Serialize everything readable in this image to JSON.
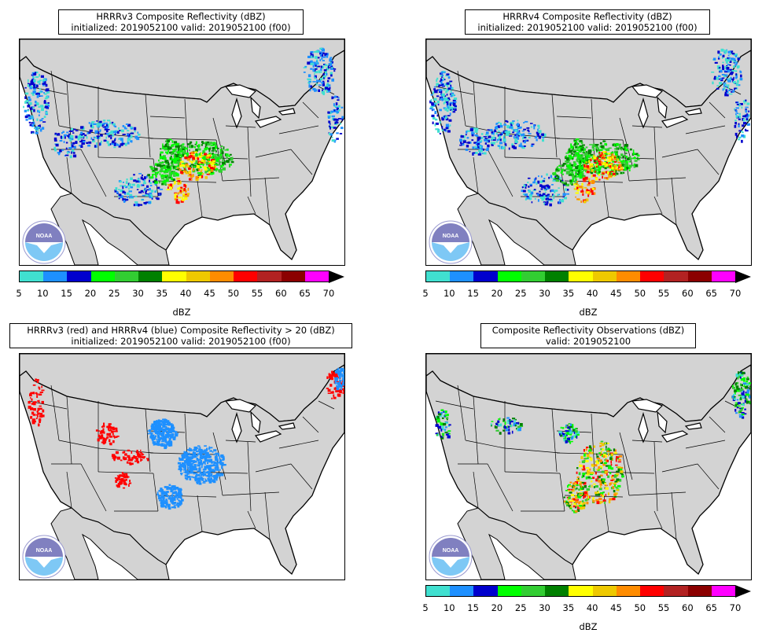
{
  "panels": [
    {
      "title_line1": "HRRRv3 Composite Reflectivity (dBZ)",
      "title_line2": "initialized: 2019052100 valid: 2019052100 (f00)",
      "logo_text": "NOAA"
    },
    {
      "title_line1": "HRRRv4 Composite Reflectivity (dBZ)",
      "title_line2": "initialized: 2019052100 valid: 2019052100 (f00)",
      "logo_text": "NOAA"
    },
    {
      "title_line1": "HRRRv3 (red) and HRRRv4 (blue) Composite Reflectivity > 20 (dBZ)",
      "title_line2": "initialized: 2019052100 valid: 2019052100 (f00)",
      "logo_text": "NOAA"
    },
    {
      "title_line1": "Composite Reflectivity Observations (dBZ)",
      "title_line2": "valid: 2019052100",
      "logo_text": "NOAA"
    }
  ],
  "colorbar": {
    "label": "dBZ",
    "ticks": [
      "5",
      "10",
      "15",
      "20",
      "25",
      "30",
      "35",
      "40",
      "45",
      "50",
      "55",
      "60",
      "65",
      "70"
    ],
    "colors": [
      "#40e0d0",
      "#1e90ff",
      "#0000cd",
      "#00ff00",
      "#32cd32",
      "#008000",
      "#ffff00",
      "#eec900",
      "#ff8c00",
      "#ff0000",
      "#b22222",
      "#8b0000",
      "#ff00ff"
    ]
  },
  "map_colors": {
    "land": "#d3d3d3",
    "water": "#ffffff",
    "hrrrv3_overlay": "#ff0000",
    "hrrrv4_overlay": "#1e90ff"
  }
}
